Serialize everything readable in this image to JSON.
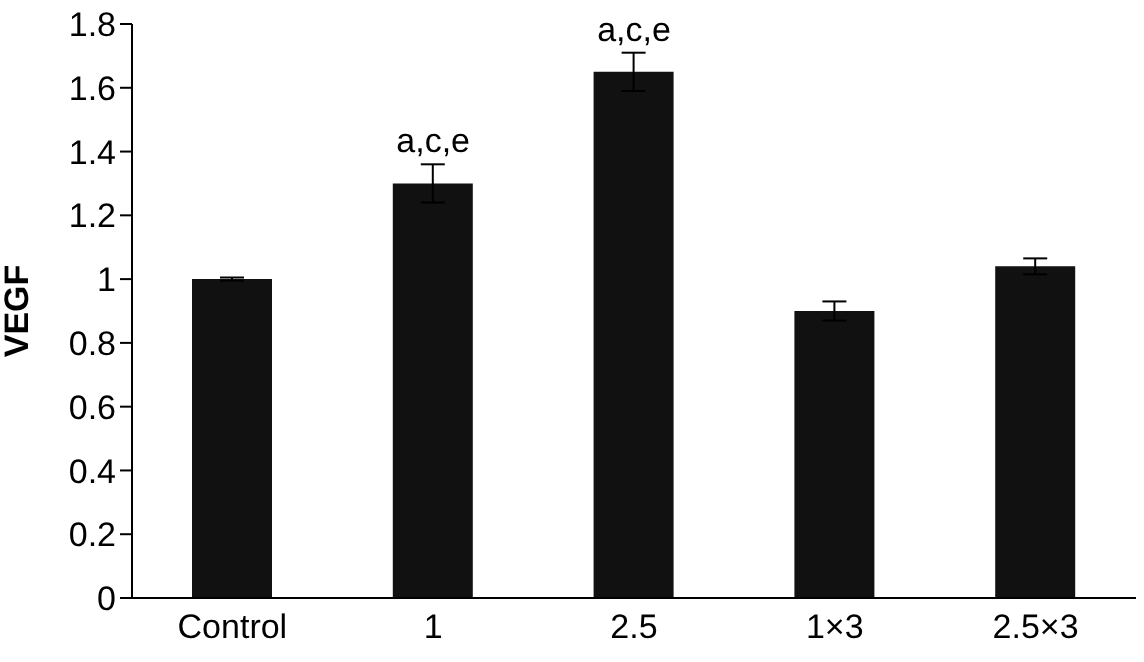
{
  "chart_data": {
    "type": "bar",
    "ylabel": "VEGF",
    "categories": [
      "Control",
      "1",
      "2.5",
      "1×3",
      "2.5×3"
    ],
    "values": [
      1.0,
      1.3,
      1.65,
      0.9,
      1.04
    ],
    "errors": [
      0.005,
      0.06,
      0.06,
      0.03,
      0.025
    ],
    "color": "#111111",
    "ylim": [
      0,
      1.8
    ],
    "yticks": [
      0,
      0.2,
      0.4,
      0.6,
      0.8,
      1,
      1.2,
      1.4,
      1.6,
      1.8
    ],
    "grid": false,
    "annotations": [
      {
        "text": "a,c,e",
        "x": "1",
        "y": 1.36
      },
      {
        "text": "a,c,e",
        "x": "2.5",
        "y": 1.71
      }
    ]
  }
}
